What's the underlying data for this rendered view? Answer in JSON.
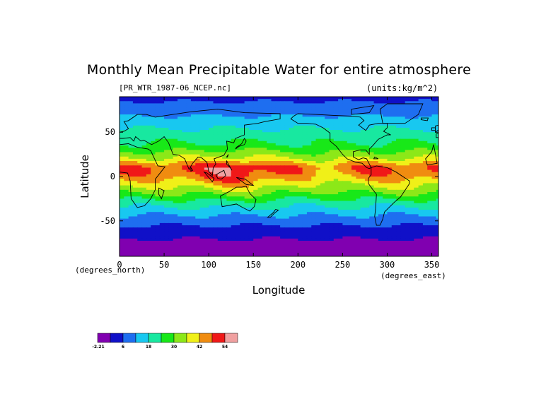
{
  "chart_data": {
    "type": "heatmap",
    "title": "Monthly Mean Precipitable Water for entire atmosphere",
    "file_label": "[PR_WTR_1987-06_NCEP.nc]",
    "units_label": "(units:kg/m^2)",
    "xlabel": "Longitude",
    "ylabel": "Latitude",
    "x_units": "(degrees_east)",
    "y_units": "(degrees_north)",
    "xlim": [
      0,
      357.5
    ],
    "ylim": [
      -90,
      90
    ],
    "x_ticks": [
      0,
      50,
      100,
      150,
      200,
      250,
      300,
      350
    ],
    "y_ticks": [
      50,
      0,
      -50
    ],
    "colorbar": {
      "levels": [
        "-2.21",
        "6",
        "18",
        "30",
        "42",
        "54"
      ],
      "colors": [
        "#8000b0",
        "#1010c8",
        "#1e6ef0",
        "#18c8f0",
        "#18e8a0",
        "#18e818",
        "#8ce818",
        "#f0f018",
        "#f08c10",
        "#f01818",
        "#f0a0a0"
      ]
    },
    "zonal_profile": {
      "latitudes": [
        -90,
        -75,
        -60,
        -45,
        -30,
        -15,
        0,
        10,
        20,
        35,
        50,
        65,
        80,
        90
      ],
      "values": [
        -1,
        2,
        7,
        14,
        23,
        35,
        46,
        50,
        38,
        27,
        22,
        16,
        10,
        8
      ]
    }
  }
}
